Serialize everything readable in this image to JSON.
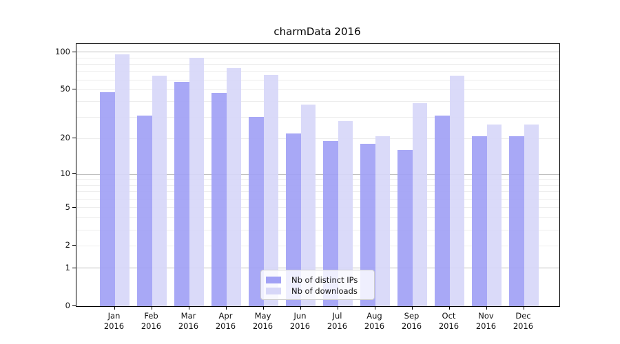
{
  "chart_data": {
    "type": "bar",
    "title": "charmData 2016",
    "categories": [
      "Jan",
      "Feb",
      "Mar",
      "Apr",
      "May",
      "Jun",
      "Jul",
      "Aug",
      "Sep",
      "Oct",
      "Nov",
      "Dec"
    ],
    "year_label": "2016",
    "series": [
      {
        "name": "Nb of distinct IPs",
        "color": "#a1a1f5",
        "values": [
          48,
          31,
          58,
          47,
          30,
          22,
          19,
          18,
          16,
          31,
          21,
          21
        ]
      },
      {
        "name": "Nb of downloads",
        "color": "#d7d7f8",
        "values": [
          96,
          65,
          90,
          75,
          66,
          38,
          28,
          21,
          39,
          65,
          26,
          26
        ]
      }
    ],
    "yscale": "symlog-log1p",
    "ylim": [
      0,
      116
    ],
    "yticks": [
      100,
      50,
      20,
      10,
      5,
      2,
      1,
      0
    ],
    "major_gridlines": [
      1,
      10,
      100
    ],
    "minor_gridlines": [
      2,
      3,
      4,
      5,
      6,
      7,
      8,
      9,
      20,
      30,
      40,
      50,
      60,
      70,
      80,
      90
    ],
    "grid": true,
    "legend_position": "bottom-center",
    "colors": {
      "axis": "#000000",
      "major_grid": "#bdbdbd",
      "minor_grid": "#ededed"
    }
  }
}
